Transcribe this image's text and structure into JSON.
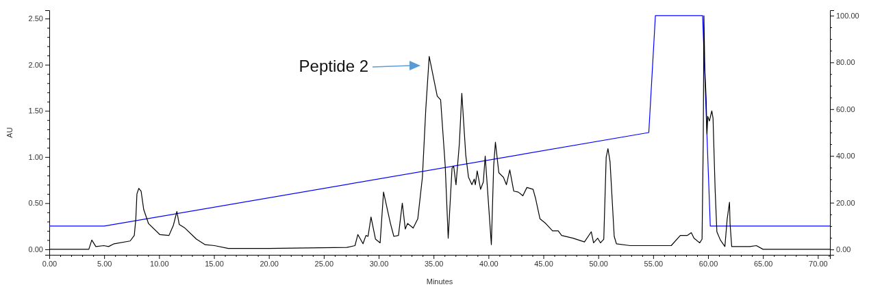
{
  "chart_data": {
    "type": "line",
    "xlabel": "Minutes",
    "ylabel": "AU",
    "xlim": [
      0,
      71.1
    ],
    "ylim": [
      -0.06,
      2.59
    ],
    "y2lim": [
      -2.3,
      102.3
    ],
    "xticks": [
      {
        "value": 0,
        "label": "0.00"
      },
      {
        "value": 1,
        "label": null
      },
      {
        "value": 2,
        "label": null
      },
      {
        "value": 3,
        "label": null
      },
      {
        "value": 4,
        "label": null
      },
      {
        "value": 5,
        "label": "5.00"
      },
      {
        "value": 6,
        "label": null
      },
      {
        "value": 7,
        "label": null
      },
      {
        "value": 8,
        "label": null
      },
      {
        "value": 9,
        "label": null
      },
      {
        "value": 10,
        "label": "10.00"
      },
      {
        "value": 11,
        "label": null
      },
      {
        "value": 12,
        "label": null
      },
      {
        "value": 13,
        "label": null
      },
      {
        "value": 14,
        "label": null
      },
      {
        "value": 15,
        "label": "15.00"
      },
      {
        "value": 16,
        "label": null
      },
      {
        "value": 17,
        "label": null
      },
      {
        "value": 18,
        "label": null
      },
      {
        "value": 19,
        "label": null
      },
      {
        "value": 20,
        "label": "20.00"
      },
      {
        "value": 21,
        "label": null
      },
      {
        "value": 22,
        "label": null
      },
      {
        "value": 23,
        "label": null
      },
      {
        "value": 24,
        "label": null
      },
      {
        "value": 25,
        "label": "25.00"
      },
      {
        "value": 26,
        "label": null
      },
      {
        "value": 27,
        "label": null
      },
      {
        "value": 28,
        "label": null
      },
      {
        "value": 29,
        "label": null
      },
      {
        "value": 30,
        "label": "30.00"
      },
      {
        "value": 31,
        "label": null
      },
      {
        "value": 32,
        "label": null
      },
      {
        "value": 33,
        "label": null
      },
      {
        "value": 34,
        "label": null
      },
      {
        "value": 35,
        "label": "35.00"
      },
      {
        "value": 36,
        "label": null
      },
      {
        "value": 37,
        "label": null
      },
      {
        "value": 38,
        "label": null
      },
      {
        "value": 39,
        "label": null
      },
      {
        "value": 40,
        "label": "40.00"
      },
      {
        "value": 41,
        "label": null
      },
      {
        "value": 42,
        "label": null
      },
      {
        "value": 43,
        "label": null
      },
      {
        "value": 44,
        "label": null
      },
      {
        "value": 45,
        "label": "45.00"
      },
      {
        "value": 46,
        "label": null
      },
      {
        "value": 47,
        "label": null
      },
      {
        "value": 48,
        "label": null
      },
      {
        "value": 49,
        "label": null
      },
      {
        "value": 50,
        "label": "50.00"
      },
      {
        "value": 51,
        "label": null
      },
      {
        "value": 52,
        "label": null
      },
      {
        "value": 53,
        "label": null
      },
      {
        "value": 54,
        "label": null
      },
      {
        "value": 55,
        "label": "55.00"
      },
      {
        "value": 56,
        "label": null
      },
      {
        "value": 57,
        "label": null
      },
      {
        "value": 58,
        "label": null
      },
      {
        "value": 59,
        "label": null
      },
      {
        "value": 60,
        "label": "60.00"
      },
      {
        "value": 61,
        "label": null
      },
      {
        "value": 62,
        "label": null
      },
      {
        "value": 63,
        "label": null
      },
      {
        "value": 64,
        "label": null
      },
      {
        "value": 65,
        "label": "65.00"
      },
      {
        "value": 66,
        "label": null
      },
      {
        "value": 67,
        "label": null
      },
      {
        "value": 68,
        "label": null
      },
      {
        "value": 69,
        "label": null
      },
      {
        "value": 70,
        "label": "70.00"
      },
      {
        "value": 71,
        "label": null
      }
    ],
    "yticks": [
      {
        "value": 0,
        "label": "0.00"
      },
      {
        "value": 0.1,
        "label": null
      },
      {
        "value": 0.2,
        "label": null
      },
      {
        "value": 0.3,
        "label": null
      },
      {
        "value": 0.4,
        "label": null
      },
      {
        "value": 0.5,
        "label": "0.50"
      },
      {
        "value": 0.6,
        "label": null
      },
      {
        "value": 0.7,
        "label": null
      },
      {
        "value": 0.8,
        "label": null
      },
      {
        "value": 0.9,
        "label": null
      },
      {
        "value": 1,
        "label": "1.00"
      },
      {
        "value": 1.1,
        "label": null
      },
      {
        "value": 1.2,
        "label": null
      },
      {
        "value": 1.3,
        "label": null
      },
      {
        "value": 1.4,
        "label": null
      },
      {
        "value": 1.5,
        "label": "1.50"
      },
      {
        "value": 1.6,
        "label": null
      },
      {
        "value": 1.7,
        "label": null
      },
      {
        "value": 1.8,
        "label": null
      },
      {
        "value": 1.9,
        "label": null
      },
      {
        "value": 2,
        "label": "2.00"
      },
      {
        "value": 2.1,
        "label": null
      },
      {
        "value": 2.2,
        "label": null
      },
      {
        "value": 2.3,
        "label": null
      },
      {
        "value": 2.4,
        "label": null
      },
      {
        "value": 2.5,
        "label": "2.50"
      }
    ],
    "y2ticks": [
      {
        "value": 0,
        "label": "0.00"
      },
      {
        "value": 5,
        "label": null
      },
      {
        "value": 10,
        "label": null
      },
      {
        "value": 15,
        "label": null
      },
      {
        "value": 20,
        "label": "20.00"
      },
      {
        "value": 25,
        "label": null
      },
      {
        "value": 30,
        "label": null
      },
      {
        "value": 35,
        "label": null
      },
      {
        "value": 40,
        "label": "40.00"
      },
      {
        "value": 45,
        "label": null
      },
      {
        "value": 50,
        "label": null
      },
      {
        "value": 55,
        "label": null
      },
      {
        "value": 60,
        "label": "60.00"
      },
      {
        "value": 65,
        "label": null
      },
      {
        "value": 70,
        "label": null
      },
      {
        "value": 75,
        "label": null
      },
      {
        "value": 80,
        "label": "80.00"
      },
      {
        "value": 85,
        "label": null
      },
      {
        "value": 90,
        "label": null
      },
      {
        "value": 95,
        "label": null
      },
      {
        "value": 100,
        "label": "100.00"
      }
    ],
    "grid": false,
    "marker": "none",
    "line_style": "solid",
    "series": [
      {
        "color": "#000000",
        "x": [
          0,
          3.6,
          3.87,
          4.24,
          4.97,
          5.4,
          5.9,
          7.36,
          7.74,
          7.88,
          7.98,
          8.15,
          8.36,
          8.6,
          9.03,
          10.06,
          10.9,
          11.3,
          11.62,
          11.83,
          12.35,
          13.4,
          14.2,
          15.05,
          16.3,
          20,
          27.1,
          27.84,
          28.1,
          28.57,
          28.84,
          29.03,
          29.3,
          29.71,
          30.13,
          30.44,
          31.07,
          31.38,
          31.8,
          32.15,
          32.42,
          32.63,
          33.14,
          33.56,
          33.98,
          34.29,
          34.6,
          35.33,
          35.64,
          36.06,
          36.33,
          36.68,
          36.83,
          37.04,
          37.35,
          37.57,
          37.93,
          38.18,
          38.49,
          38.7,
          38.8,
          38.97,
          39.28,
          39.53,
          39.7,
          40.26,
          40.47,
          40.63,
          40.94,
          41.36,
          41.63,
          41.94,
          42.3,
          42.71,
          43.13,
          43.5,
          44.06,
          44.27,
          44.69,
          45.21,
          45.83,
          46.35,
          46.66,
          47.7,
          48.74,
          49.36,
          49.57,
          49.95,
          50.2,
          50.5,
          50.72,
          50.88,
          51.07,
          51.45,
          51.65,
          52.9,
          54.77,
          56.64,
          57.47,
          58.1,
          58.47,
          58.72,
          59.24,
          59.45,
          59.56,
          59.62,
          59.7,
          59.82,
          59.9,
          59.97,
          60.12,
          60.34,
          60.45,
          60.64,
          60.8,
          61.12,
          61.53,
          61.74,
          61.95,
          62.0,
          62.15,
          63.2,
          63.8,
          64.4,
          65,
          71.1
        ],
        "values": [
          0,
          0,
          0.1,
          0.03,
          0.04,
          0.03,
          0.06,
          0.09,
          0.15,
          0.33,
          0.6,
          0.66,
          0.63,
          0.43,
          0.28,
          0.16,
          0.15,
          0.26,
          0.41,
          0.27,
          0.23,
          0.11,
          0.05,
          0.04,
          0.01,
          0.01,
          0.02,
          0.04,
          0.16,
          0.06,
          0.15,
          0.14,
          0.35,
          0.11,
          0.07,
          0.62,
          0.28,
          0.14,
          0.15,
          0.5,
          0.22,
          0.28,
          0.23,
          0.33,
          0.78,
          1.52,
          2.09,
          1.66,
          1.62,
          0.9,
          0.12,
          0.88,
          0.9,
          0.7,
          1.15,
          1.69,
          1.02,
          0.78,
          0.7,
          0.76,
          0.7,
          0.85,
          0.65,
          0.73,
          1.01,
          0.05,
          0.9,
          1.16,
          0.83,
          0.78,
          0.7,
          0.86,
          0.63,
          0.62,
          0.58,
          0.67,
          0.65,
          0.56,
          0.33,
          0.28,
          0.2,
          0.2,
          0.15,
          0.12,
          0.08,
          0.19,
          0.07,
          0.12,
          0.07,
          0.11,
          1.0,
          1.09,
          0.95,
          0.14,
          0.06,
          0.04,
          0.04,
          0.04,
          0.15,
          0.15,
          0.18,
          0.12,
          0.07,
          0.11,
          1.17,
          2.53,
          1.96,
          1.64,
          1.25,
          1.44,
          1.39,
          1.5,
          1.42,
          0.65,
          0.19,
          0.1,
          0.03,
          0.33,
          0.51,
          0.28,
          0.03,
          0.03,
          0.03,
          0.04,
          0,
          0
        ]
      },
      {
        "color": "#0000ff",
        "axis": "y2",
        "x": [
          0,
          5,
          54.6,
          55.2,
          59.5,
          60.2,
          71.1
        ],
        "values": [
          10,
          10,
          50,
          100,
          100,
          10,
          10
        ]
      }
    ],
    "annotations": [
      "Peptide 2"
    ]
  }
}
